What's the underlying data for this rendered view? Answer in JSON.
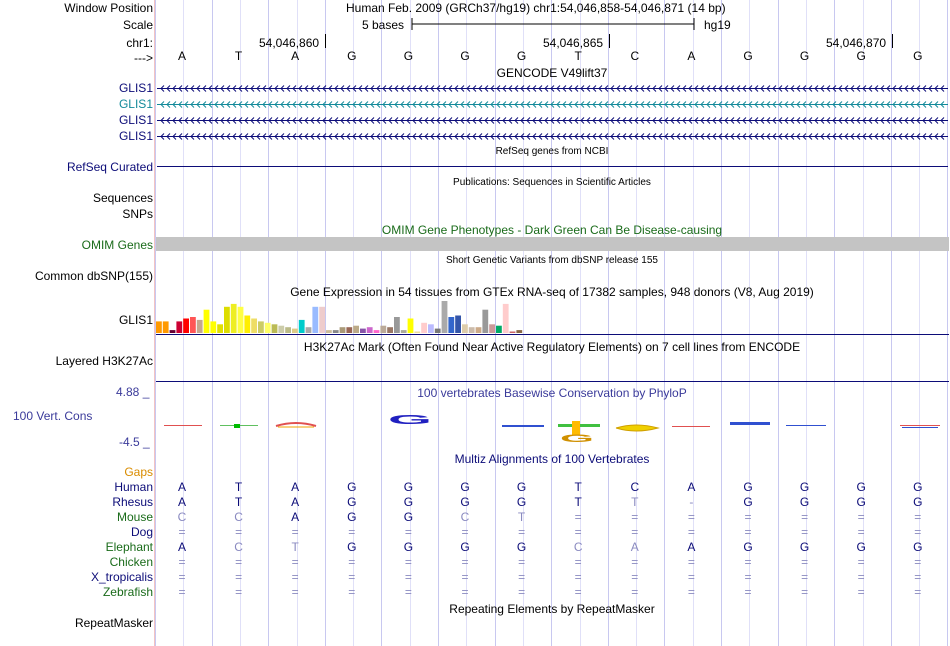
{
  "header": {
    "window_position_label": "Window Position",
    "window_position_value": "Human Feb. 2009 (GRCh37/hg19)   chr1:54,046,858-54,046,871 (14 bp)",
    "scale_label": "Scale",
    "scale_value": "5 bases",
    "scale_assembly": "hg19",
    "chrom_label": "chr1:",
    "positions": [
      "54,046,860",
      "54,046,865",
      "54,046,870"
    ],
    "strand_label": "--->"
  },
  "reference_bases": [
    "A",
    "T",
    "A",
    "G",
    "G",
    "G",
    "G",
    "T",
    "C",
    "A",
    "G",
    "G",
    "G",
    "G"
  ],
  "tracks": {
    "gencode": {
      "title": "GENCODE V49lift37",
      "rows": [
        {
          "label": "GLIS1",
          "color": "#0c0c78"
        },
        {
          "label": "GLIS1",
          "color": "#138a9a"
        },
        {
          "label": "GLIS1",
          "color": "#0c0c78"
        },
        {
          "label": "GLIS1",
          "color": "#0c0c78"
        }
      ]
    },
    "refseq": {
      "label": "RefSeq Curated",
      "title": "RefSeq genes from NCBI"
    },
    "publications": {
      "labels": [
        "Sequences",
        "SNPs"
      ],
      "title": "Publications: Sequences in Scientific Articles"
    },
    "omim": {
      "label": "OMIM Genes",
      "title": "OMIM Gene Phenotypes - Dark Green Can Be Disease-causing"
    },
    "dbsnp": {
      "label": "Common dbSNP(155)",
      "title": "Short Genetic Variants from dbSNP release 155"
    },
    "gtex": {
      "label": "GLIS1",
      "title": "Gene Expression in 54 tissues from GTEx RNA-seq of 17382 samples, 948 donors (V8, Aug 2019)",
      "values": [
        0.4,
        0.4,
        0.1,
        0.4,
        0.5,
        0.55,
        0.45,
        0.8,
        0.4,
        0.3,
        0.9,
        1.0,
        0.9,
        0.6,
        0.5,
        0.4,
        0.35,
        0.3,
        0.25,
        0.2,
        0.15,
        0.45,
        0.2,
        0.9,
        0.9,
        0.1,
        0.1,
        0.2,
        0.2,
        0.25,
        0.15,
        0.2,
        0.1,
        0.25,
        0.2,
        0.55,
        0.1,
        0.5,
        0.05,
        0.35,
        0.3,
        0.15,
        1.1,
        0.55,
        0.6,
        0.3,
        0.2,
        0.2,
        0.8,
        0.3,
        0.25,
        1.0,
        0.05,
        0.1
      ],
      "colors": [
        "#ff9900",
        "#ff9900",
        "#660033",
        "#cc0033",
        "#ff0000",
        "#ff5555",
        "#c5a78e",
        "#ffff00",
        "#ffff00",
        "#e0e000",
        "#dddd00",
        "#eeee22",
        "#ffff44",
        "#ffee00",
        "#eedd66",
        "#cccc66",
        "#ffff66",
        "#bbbb55",
        "#ccccaa",
        "#bbbb88",
        "#ddcc88",
        "#00cccc",
        "#aaaaaa",
        "#99bbff",
        "#eecccc",
        "#ccbb99",
        "#888888",
        "#aa9977",
        "#996655",
        "#bbaa88",
        "#8855aa",
        "#cc66cc",
        "#ff66cc",
        "#bbaa99",
        "#997766",
        "#999999",
        "#aaaa99",
        "#ffff00",
        "#eedd99",
        "#ffcccc",
        "#bbbbff",
        "#777777",
        "#aaaaaa",
        "#3366cc",
        "#3355aa",
        "#ddccaa",
        "#ccbbaa",
        "#ccaa88",
        "#999999",
        "#cc9999",
        "#00aa66",
        "#ffcccc",
        "#cc6666",
        "#886644"
      ]
    },
    "h3k27ac": {
      "label": "Layered H3K27Ac",
      "title": "H3K27Ac Mark (Often Found Near Active Regulatory Elements) on 7 cell lines from ENCODE"
    },
    "conservation": {
      "label": "100 Vert. Cons",
      "max": "4.88 _",
      "min": "-4.5 _",
      "title": "100 vertebrates Basewise Conservation by PhyloP"
    },
    "multiz": {
      "title": "Multiz Alignments of 100 Vertebrates",
      "gaps_label": "Gaps",
      "species": [
        {
          "name": "Human",
          "color": "#0c0c78",
          "bases": [
            "A",
            "T",
            "A",
            "G",
            "G",
            "G",
            "G",
            "T",
            "C",
            "A",
            "G",
            "G",
            "G",
            "G"
          ]
        },
        {
          "name": "Rhesus",
          "color": "#0c0c78",
          "bases": [
            "A",
            "T",
            "A",
            "G",
            "G",
            "G",
            "G",
            "T",
            "T",
            "-",
            "G",
            "G",
            "G",
            "G"
          ]
        },
        {
          "name": "Mouse",
          "color": "#1a6b1a",
          "bases": [
            "C",
            "C",
            "A",
            "G",
            "G",
            "C",
            "T",
            "=",
            "=",
            "=",
            "=",
            "=",
            "=",
            "="
          ]
        },
        {
          "name": "Dog",
          "color": "#0c0c78",
          "bases": [
            "=",
            "=",
            "=",
            "=",
            "=",
            "=",
            "=",
            "=",
            "=",
            "=",
            "=",
            "=",
            "=",
            "="
          ]
        },
        {
          "name": "Elephant",
          "color": "#1a6b1a",
          "bases": [
            "A",
            "C",
            "T",
            "G",
            "G",
            "G",
            "G",
            "C",
            "A",
            "A",
            "G",
            "G",
            "G",
            "G"
          ]
        },
        {
          "name": "Chicken",
          "color": "#1a6b1a",
          "bases": [
            "=",
            "=",
            "=",
            "=",
            "=",
            "=",
            "=",
            "=",
            "=",
            "=",
            "=",
            "=",
            "=",
            "="
          ]
        },
        {
          "name": "X_tropicalis",
          "color": "#0c0c78",
          "bases": [
            "=",
            "=",
            "=",
            "=",
            "=",
            "=",
            "=",
            "=",
            "=",
            "=",
            "=",
            "=",
            "=",
            "="
          ]
        },
        {
          "name": "Zebrafish",
          "color": "#1a6b1a",
          "bases": [
            "=",
            "=",
            "=",
            "=",
            "=",
            "=",
            "=",
            "=",
            "=",
            "=",
            "=",
            "=",
            "=",
            "="
          ]
        }
      ]
    },
    "repeatmasker": {
      "label": "RepeatMasker",
      "title": "Repeating Elements by RepeatMasker"
    }
  },
  "colors": {
    "navy": "#0c0c78",
    "teal": "#138a9a",
    "omim_green": "#1a6b1a",
    "cons_blue": "#3a3a9a",
    "gaps": "#d98c00"
  }
}
